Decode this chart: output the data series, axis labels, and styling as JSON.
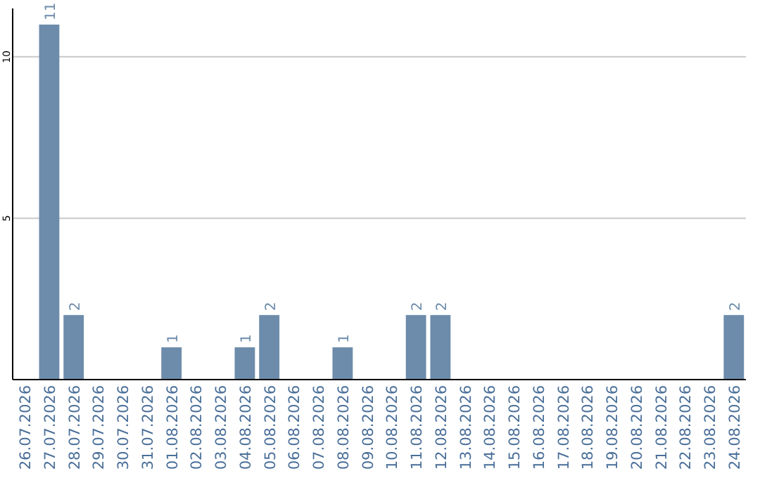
{
  "chart_data": {
    "type": "bar",
    "categories": [
      "26.07.2026",
      "27.07.2026",
      "28.07.2026",
      "29.07.2026",
      "30.07.2026",
      "31.07.2026",
      "01.08.2026",
      "02.08.2026",
      "03.08.2026",
      "04.08.2026",
      "05.08.2026",
      "06.08.2026",
      "07.08.2026",
      "08.08.2026",
      "09.08.2026",
      "10.08.2026",
      "11.08.2026",
      "12.08.2026",
      "13.08.2026",
      "14.08.2026",
      "15.08.2026",
      "16.08.2026",
      "17.08.2026",
      "18.08.2026",
      "19.08.2026",
      "20.08.2026",
      "21.08.2026",
      "22.08.2026",
      "23.08.2026",
      "24.08.2026"
    ],
    "values": [
      0,
      11,
      2,
      0,
      0,
      0,
      1,
      0,
      0,
      1,
      2,
      0,
      0,
      1,
      0,
      0,
      2,
      2,
      0,
      0,
      0,
      0,
      0,
      0,
      0,
      0,
      0,
      0,
      0,
      2
    ],
    "value_labels": [
      null,
      "11",
      "2",
      null,
      null,
      null,
      "1",
      null,
      null,
      "1",
      "2",
      null,
      null,
      "1",
      null,
      null,
      "2",
      "2",
      null,
      null,
      null,
      null,
      null,
      null,
      null,
      null,
      null,
      null,
      null,
      "2"
    ],
    "color": "#6d8cab",
    "ylim": [
      0,
      11.5
    ],
    "yticks": [
      5,
      10
    ],
    "grid": "y"
  }
}
